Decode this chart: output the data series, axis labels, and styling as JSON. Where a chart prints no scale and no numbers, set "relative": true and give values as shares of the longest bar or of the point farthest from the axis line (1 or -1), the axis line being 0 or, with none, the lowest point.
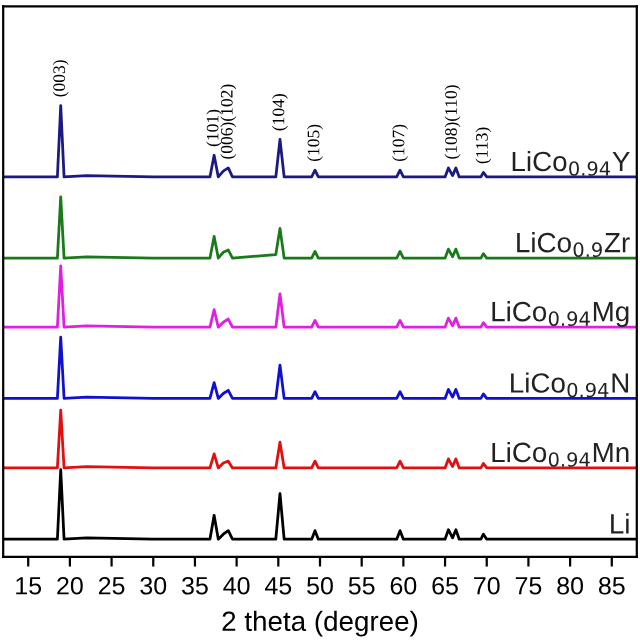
{
  "chart_data": {
    "type": "line",
    "relative": true,
    "xlabel": "2 theta (degree)",
    "xlim": [
      12,
      88
    ],
    "xticks": [
      15,
      20,
      25,
      30,
      35,
      40,
      45,
      50,
      55,
      60,
      65,
      70,
      75,
      80,
      85
    ],
    "grid": false,
    "legend": false,
    "marker": "none",
    "line_style": "solid",
    "tick_labels": "x",
    "x": [
      12,
      17,
      18.5,
      18.9,
      19.3,
      22,
      30,
      36.8,
      37.3,
      37.8,
      38.4,
      39.0,
      39.5,
      44.7,
      45.2,
      45.7,
      49.0,
      49.4,
      49.8,
      59.2,
      59.6,
      60.0,
      65.0,
      65.4,
      65.9,
      66.3,
      66.7,
      69.3,
      69.6,
      70.0,
      80,
      88
    ],
    "series": [
      {
        "name": "LiCo$_{0.94}$Y",
        "color": "#1a1a80",
        "values": [
          0.842,
          0.842,
          0.842,
          1.0,
          0.842,
          0.845,
          0.842,
          0.842,
          0.89,
          0.842,
          0.855,
          0.862,
          0.842,
          0.842,
          0.925,
          0.842,
          0.842,
          0.857,
          0.842,
          0.842,
          0.857,
          0.842,
          0.842,
          0.862,
          0.845,
          0.862,
          0.842,
          0.842,
          0.852,
          0.842,
          0.842,
          0.842
        ]
      },
      {
        "name": "LiCo$_{0.9}$Zr",
        "color": "#1a7a1a",
        "values": [
          0.662,
          0.662,
          0.662,
          0.798,
          0.662,
          0.665,
          0.662,
          0.662,
          0.71,
          0.662,
          0.675,
          0.68,
          0.662,
          0.67,
          0.728,
          0.662,
          0.662,
          0.677,
          0.662,
          0.662,
          0.677,
          0.662,
          0.662,
          0.682,
          0.665,
          0.682,
          0.662,
          0.662,
          0.672,
          0.662,
          0.662,
          0.662
        ]
      },
      {
        "name": "LiCo$_{0.94}$Mg",
        "color": "#e020e0",
        "values": [
          0.509,
          0.509,
          0.509,
          0.645,
          0.509,
          0.512,
          0.509,
          0.509,
          0.548,
          0.509,
          0.52,
          0.527,
          0.509,
          0.509,
          0.583,
          0.509,
          0.509,
          0.524,
          0.509,
          0.509,
          0.524,
          0.509,
          0.509,
          0.529,
          0.512,
          0.529,
          0.509,
          0.509,
          0.519,
          0.509,
          0.509,
          0.509
        ]
      },
      {
        "name": "LiCo$_{0.94}$N",
        "color": "#1010d0",
        "values": [
          0.351,
          0.351,
          0.351,
          0.487,
          0.351,
          0.354,
          0.351,
          0.351,
          0.386,
          0.351,
          0.362,
          0.369,
          0.351,
          0.351,
          0.425,
          0.351,
          0.351,
          0.366,
          0.351,
          0.351,
          0.366,
          0.351,
          0.351,
          0.371,
          0.354,
          0.371,
          0.351,
          0.351,
          0.361,
          0.351,
          0.351,
          0.351
        ]
      },
      {
        "name": "LiCo$_{0.94}$Mn",
        "color": "#e01010",
        "values": [
          0.197,
          0.197,
          0.197,
          0.325,
          0.197,
          0.2,
          0.197,
          0.197,
          0.228,
          0.197,
          0.208,
          0.212,
          0.197,
          0.197,
          0.254,
          0.197,
          0.197,
          0.212,
          0.197,
          0.197,
          0.212,
          0.197,
          0.197,
          0.217,
          0.2,
          0.217,
          0.197,
          0.197,
          0.207,
          0.197,
          0.197,
          0.197
        ]
      },
      {
        "name": "Li",
        "color": "#000000",
        "values": [
          0.039,
          0.039,
          0.039,
          0.193,
          0.039,
          0.042,
          0.039,
          0.039,
          0.092,
          0.039,
          0.05,
          0.058,
          0.039,
          0.039,
          0.14,
          0.039,
          0.039,
          0.058,
          0.039,
          0.039,
          0.058,
          0.039,
          0.039,
          0.06,
          0.042,
          0.06,
          0.039,
          0.039,
          0.05,
          0.039,
          0.039,
          0.039
        ]
      }
    ],
    "annotations": [
      {
        "text": "(003)",
        "x": 18.9,
        "y": 1.0
      },
      {
        "text": "(101)",
        "x": 37.3,
        "y": 0.89
      },
      {
        "text": "(006)(102)",
        "x": 39.0,
        "y": 0.862
      },
      {
        "text": "(104)",
        "x": 45.2,
        "y": 0.925
      },
      {
        "text": "(105)",
        "x": 49.4,
        "y": 0.857
      },
      {
        "text": "(107)",
        "x": 59.6,
        "y": 0.857
      },
      {
        "text": "(108)(110)",
        "x": 65.9,
        "y": 0.862
      },
      {
        "text": "(113)",
        "x": 69.6,
        "y": 0.852
      }
    ]
  }
}
